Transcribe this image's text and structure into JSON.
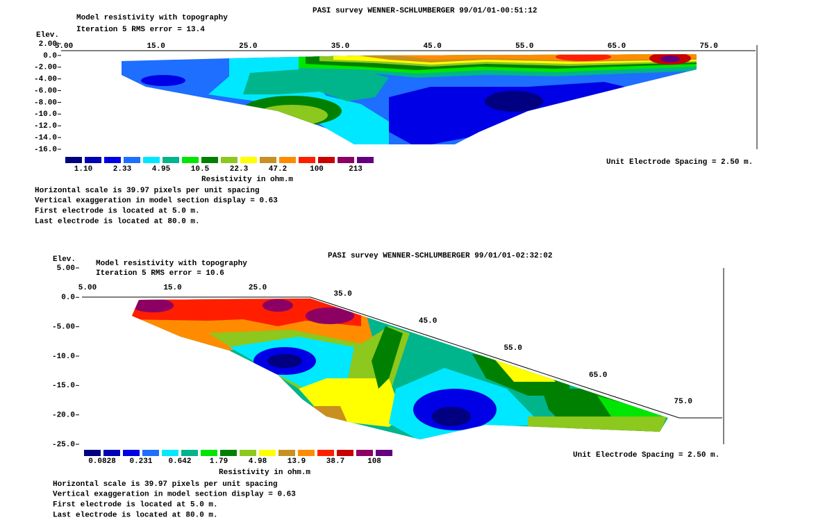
{
  "chart_data": [
    {
      "type": "contour",
      "title": "PASI survey WENNER-SCHLUMBERGER 99/01/01-00:51:12",
      "subtitle": [
        "Model resistivity with topography",
        "Iteration 5 RMS error = 13.4"
      ],
      "ylabel": "Elev.",
      "xlim": [
        5,
        80
      ],
      "ylim": [
        -16,
        2
      ],
      "xticks": [
        {
          "value": 5,
          "label": "5.00"
        },
        {
          "value": 15,
          "label": "15.0"
        },
        {
          "value": 25,
          "label": "25.0"
        },
        {
          "value": 35,
          "label": "35.0"
        },
        {
          "value": 45,
          "label": "45.0"
        },
        {
          "value": 55,
          "label": "55.0"
        },
        {
          "value": 65,
          "label": "65.0"
        },
        {
          "value": 75,
          "label": "75.0"
        }
      ],
      "yticks": [
        {
          "value": 2,
          "label": "2.00"
        },
        {
          "value": 0,
          "label": "0.0"
        },
        {
          "value": -2,
          "label": "-2.00"
        },
        {
          "value": -4,
          "label": "-4.00"
        },
        {
          "value": -6,
          "label": "-6.00"
        },
        {
          "value": -8,
          "label": "-8.00"
        },
        {
          "value": -10,
          "label": "-10.0"
        },
        {
          "value": -12,
          "label": "-12.0"
        },
        {
          "value": -14,
          "label": "-14.0"
        },
        {
          "value": -16,
          "label": "-16.0"
        }
      ],
      "colors": [
        "#000080",
        "#0000b4",
        "#0000e6",
        "#1e6eff",
        "#00e8ff",
        "#00b48c",
        "#00e600",
        "#008000",
        "#8cc81e",
        "#ffff00",
        "#c8901e",
        "#ff8c00",
        "#ff1e00",
        "#c80000",
        "#8c0064",
        "#64007d"
      ],
      "legend_labels": [
        "1.10",
        "2.33",
        "4.95",
        "10.5",
        "22.3",
        "47.2",
        "100",
        "213"
      ],
      "colorbar_label": "Resistivity in ohm.m",
      "spacing_note": "Unit Electrode Spacing = 2.50 m.",
      "notes": [
        "Horizontal scale is 39.97 pixels per unit spacing",
        "Vertical exaggeration in model section display = 0.63",
        "First electrode is located at 5.0  m.",
        "Last electrode is located at 80.0 m."
      ]
    },
    {
      "type": "contour",
      "title": "PASI survey WENNER-SCHLUMBERGER 99/01/01-02:32:02",
      "subtitle": [
        "Model resistivity with topography",
        "Iteration 5 RMS error = 10.6"
      ],
      "ylabel": "Elev.",
      "xlim": [
        5,
        80
      ],
      "ylim": [
        -25,
        5
      ],
      "xticks": [
        {
          "value": 5,
          "label": "5.00"
        },
        {
          "value": 15,
          "label": "15.0"
        },
        {
          "value": 25,
          "label": "25.0"
        },
        {
          "value": 35,
          "label": "35.0"
        },
        {
          "value": 45,
          "label": "45.0"
        },
        {
          "value": 55,
          "label": "55.0"
        },
        {
          "value": 65,
          "label": "65.0"
        },
        {
          "value": 75,
          "label": "75.0"
        }
      ],
      "yticks": [
        {
          "value": 5,
          "label": "5.00"
        },
        {
          "value": 0,
          "label": "0.0"
        },
        {
          "value": -5,
          "label": "-5.00"
        },
        {
          "value": -10,
          "label": "-10.0"
        },
        {
          "value": -15,
          "label": "-15.0"
        },
        {
          "value": -20,
          "label": "-20.0"
        },
        {
          "value": -25,
          "label": "-25.0"
        }
      ],
      "colors": [
        "#000080",
        "#0000b4",
        "#0000e6",
        "#1e6eff",
        "#00e8ff",
        "#00b48c",
        "#00e600",
        "#008000",
        "#8cc81e",
        "#ffff00",
        "#c8901e",
        "#ff8c00",
        "#ff1e00",
        "#c80000",
        "#8c0064",
        "#64007d"
      ],
      "legend_labels": [
        "0.0828",
        "0.231",
        "0.642",
        "1.79",
        "4.98",
        "13.9",
        "38.7",
        "108"
      ],
      "colorbar_label": "Resistivity in ohm.m",
      "spacing_note": "Unit Electrode Spacing = 2.50 m.",
      "notes": [
        "Horizontal scale is 39.97 pixels per unit spacing",
        "Vertical exaggeration in model section display = 0.63",
        "First electrode is located at 5.0  m.",
        "Last electrode is located at 80.0 m."
      ]
    }
  ]
}
